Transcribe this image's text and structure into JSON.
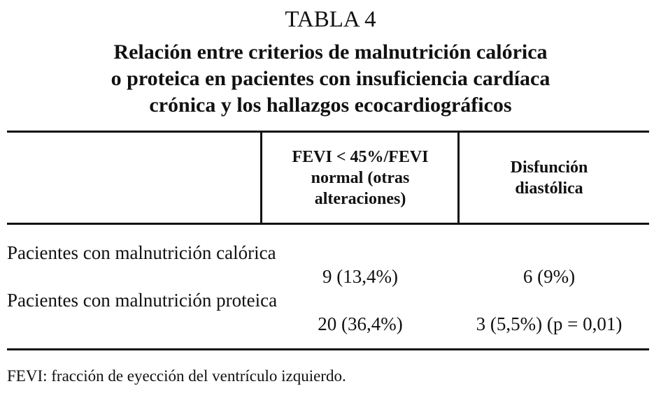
{
  "title": "TABLA 4",
  "subtitle_lines": [
    "Relación entre criterios de malnutrición calórica",
    "o proteica en pacientes con insuficiencia cardíaca",
    "crónica y los hallazgos ecocardiográficos"
  ],
  "table": {
    "header": [
      "FEVI < 45%/FEVI normal (otras alteraciones)",
      "Disfunción diastólica"
    ],
    "rows": [
      [
        "Pacientes con malnutrición calórica",
        "9 (13,4%)",
        "6 (9%)"
      ],
      [
        "Pacientes con malnutrición proteica",
        "20 (36,4%)",
        "3 (5,5%) (p = 0,01)"
      ]
    ]
  },
  "footnote": "FEVI: fracción de eyección del ventrículo izquierdo."
}
